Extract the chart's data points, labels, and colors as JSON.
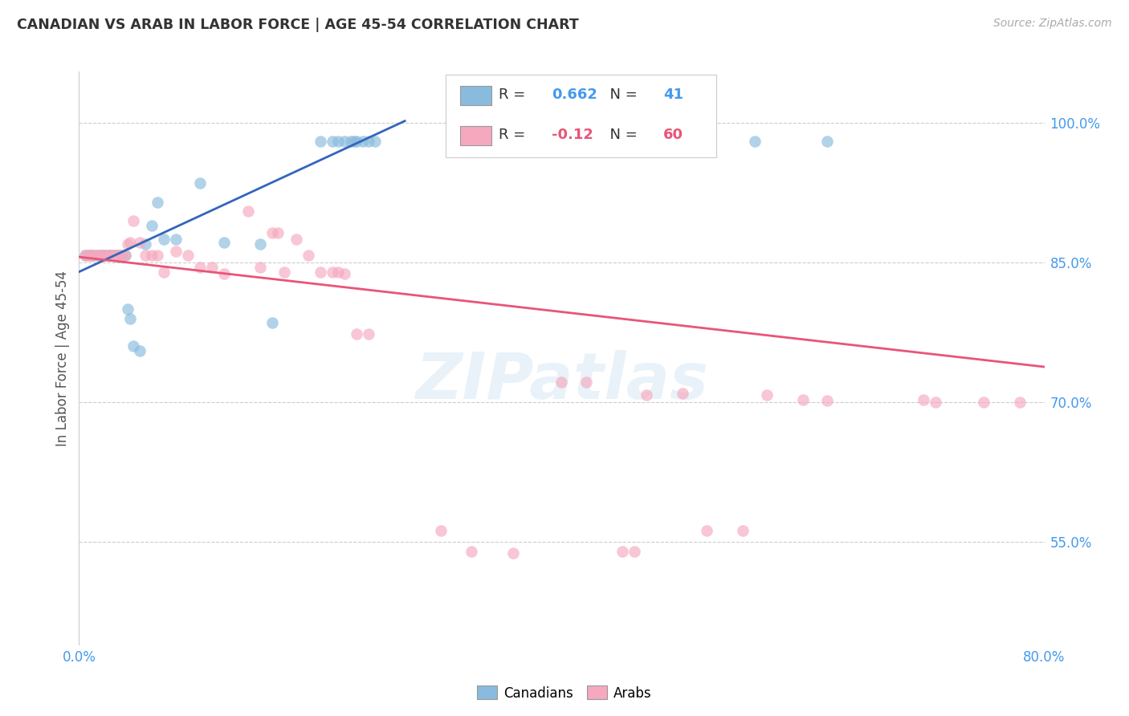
{
  "title": "CANADIAN VS ARAB IN LABOR FORCE | AGE 45-54 CORRELATION CHART",
  "source": "Source: ZipAtlas.com",
  "ylabel": "In Labor Force | Age 45-54",
  "xlim": [
    0.0,
    0.8
  ],
  "ylim": [
    0.44,
    1.055
  ],
  "xticks": [
    0.0,
    0.1,
    0.2,
    0.3,
    0.4,
    0.5,
    0.6,
    0.7,
    0.8
  ],
  "xticklabels": [
    "0.0%",
    "",
    "",
    "",
    "",
    "",
    "",
    "",
    "80.0%"
  ],
  "ytick_positions": [
    0.55,
    0.7,
    0.85,
    1.0
  ],
  "ytick_labels": [
    "55.0%",
    "70.0%",
    "85.0%",
    "100.0%"
  ],
  "R_canadian": 0.662,
  "N_canadian": 41,
  "R_arab": -0.12,
  "N_arab": 60,
  "canadian_x": [
    0.005,
    0.008,
    0.01,
    0.012,
    0.015,
    0.018,
    0.02,
    0.022,
    0.025,
    0.025,
    0.028,
    0.03,
    0.03,
    0.032,
    0.035,
    0.038,
    0.04,
    0.042,
    0.045,
    0.05,
    0.055,
    0.06,
    0.065,
    0.07,
    0.08,
    0.1,
    0.12,
    0.15,
    0.16,
    0.2,
    0.21,
    0.215,
    0.22,
    0.225,
    0.228,
    0.23,
    0.235,
    0.24,
    0.245,
    0.56,
    0.62
  ],
  "canadian_y": [
    0.858,
    0.858,
    0.858,
    0.858,
    0.858,
    0.858,
    0.858,
    0.858,
    0.858,
    0.858,
    0.858,
    0.858,
    0.858,
    0.858,
    0.858,
    0.858,
    0.8,
    0.79,
    0.76,
    0.755,
    0.87,
    0.89,
    0.915,
    0.875,
    0.875,
    0.935,
    0.872,
    0.87,
    0.785,
    0.98,
    0.98,
    0.98,
    0.98,
    0.98,
    0.98,
    0.98,
    0.98,
    0.98,
    0.98,
    0.98,
    0.98
  ],
  "arab_x": [
    0.005,
    0.008,
    0.01,
    0.012,
    0.015,
    0.018,
    0.02,
    0.022,
    0.025,
    0.025,
    0.028,
    0.03,
    0.03,
    0.032,
    0.035,
    0.038,
    0.04,
    0.042,
    0.045,
    0.05,
    0.055,
    0.06,
    0.065,
    0.07,
    0.08,
    0.09,
    0.1,
    0.11,
    0.12,
    0.14,
    0.15,
    0.16,
    0.165,
    0.17,
    0.18,
    0.19,
    0.2,
    0.21,
    0.215,
    0.22,
    0.23,
    0.24,
    0.3,
    0.325,
    0.36,
    0.4,
    0.42,
    0.45,
    0.46,
    0.47,
    0.5,
    0.52,
    0.55,
    0.57,
    0.6,
    0.62,
    0.7,
    0.71,
    0.75,
    0.78
  ],
  "arab_y": [
    0.858,
    0.858,
    0.858,
    0.858,
    0.858,
    0.858,
    0.858,
    0.858,
    0.858,
    0.858,
    0.858,
    0.858,
    0.858,
    0.858,
    0.858,
    0.858,
    0.87,
    0.872,
    0.895,
    0.872,
    0.858,
    0.858,
    0.858,
    0.84,
    0.862,
    0.858,
    0.845,
    0.845,
    0.838,
    0.905,
    0.845,
    0.882,
    0.882,
    0.84,
    0.875,
    0.858,
    0.84,
    0.84,
    0.84,
    0.838,
    0.773,
    0.773,
    0.562,
    0.54,
    0.538,
    0.722,
    0.722,
    0.54,
    0.54,
    0.708,
    0.71,
    0.562,
    0.562,
    0.708,
    0.703,
    0.702,
    0.703,
    0.7,
    0.7,
    0.7
  ],
  "blue_color": "#88bbdd",
  "pink_color": "#f5a8be",
  "blue_line_color": "#3366bb",
  "pink_line_color": "#e85578",
  "bg_color": "#ffffff",
  "grid_color": "#cccccc",
  "title_color": "#333333",
  "axis_color": "#4499ee",
  "watermark_color": "#d8e8f5",
  "circle_size": 110
}
